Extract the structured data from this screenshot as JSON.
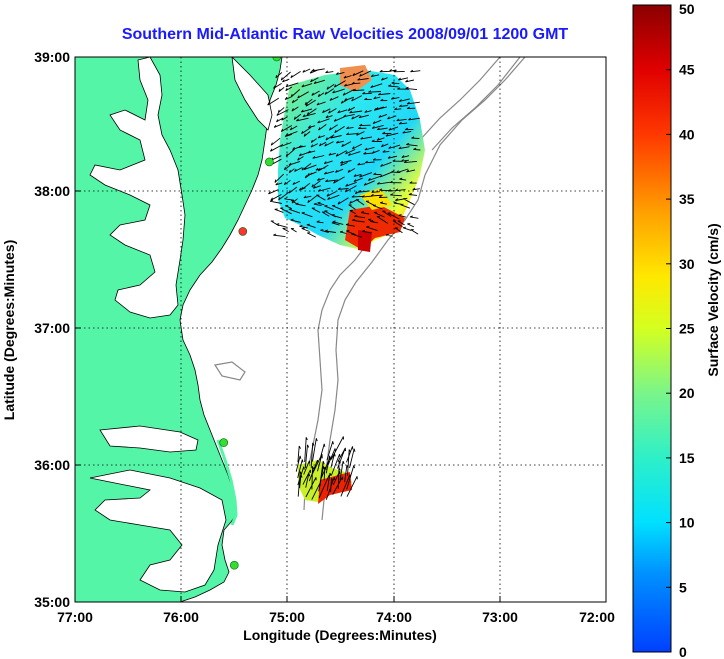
{
  "title": "Southern Mid-Atlantic Raw Velocities 2008/09/01 1200 GMT",
  "xaxis": {
    "label": "Longitude (Degrees:Minutes)",
    "ticks": [
      "77:00",
      "76:00",
      "75:00",
      "74:00",
      "73:00",
      "72:00"
    ]
  },
  "yaxis": {
    "label": "Latitude (Degrees:Minutes)",
    "ticks": [
      "39:00",
      "38:00",
      "37:00",
      "36:00",
      "35:00"
    ]
  },
  "colorbar": {
    "label": "Surface Velocity (cm/s)",
    "ticks": [
      "50",
      "45",
      "40",
      "35",
      "30",
      "25",
      "20",
      "15",
      "10",
      "5",
      "0"
    ],
    "min": 0,
    "max": 50
  },
  "map_extent": {
    "lon": [
      -77,
      -72
    ],
    "lat": [
      35,
      39
    ]
  },
  "colors": {
    "land": "#55f5a8",
    "water": "#ffffff",
    "title": "#1a1aff",
    "stations": "#33dd33",
    "station_alt": "#ff3333",
    "bathymetry": "#888888"
  },
  "stations": [
    {
      "lon": -75.1,
      "lat": 39.0,
      "color": "stations"
    },
    {
      "lon": -75.17,
      "lat": 38.23,
      "color": "stations"
    },
    {
      "lon": -75.42,
      "lat": 37.72,
      "color": "station_alt"
    },
    {
      "lon": -75.6,
      "lat": 36.17,
      "color": "stations"
    },
    {
      "lon": -75.5,
      "lat": 35.27,
      "color": "stations"
    }
  ]
}
